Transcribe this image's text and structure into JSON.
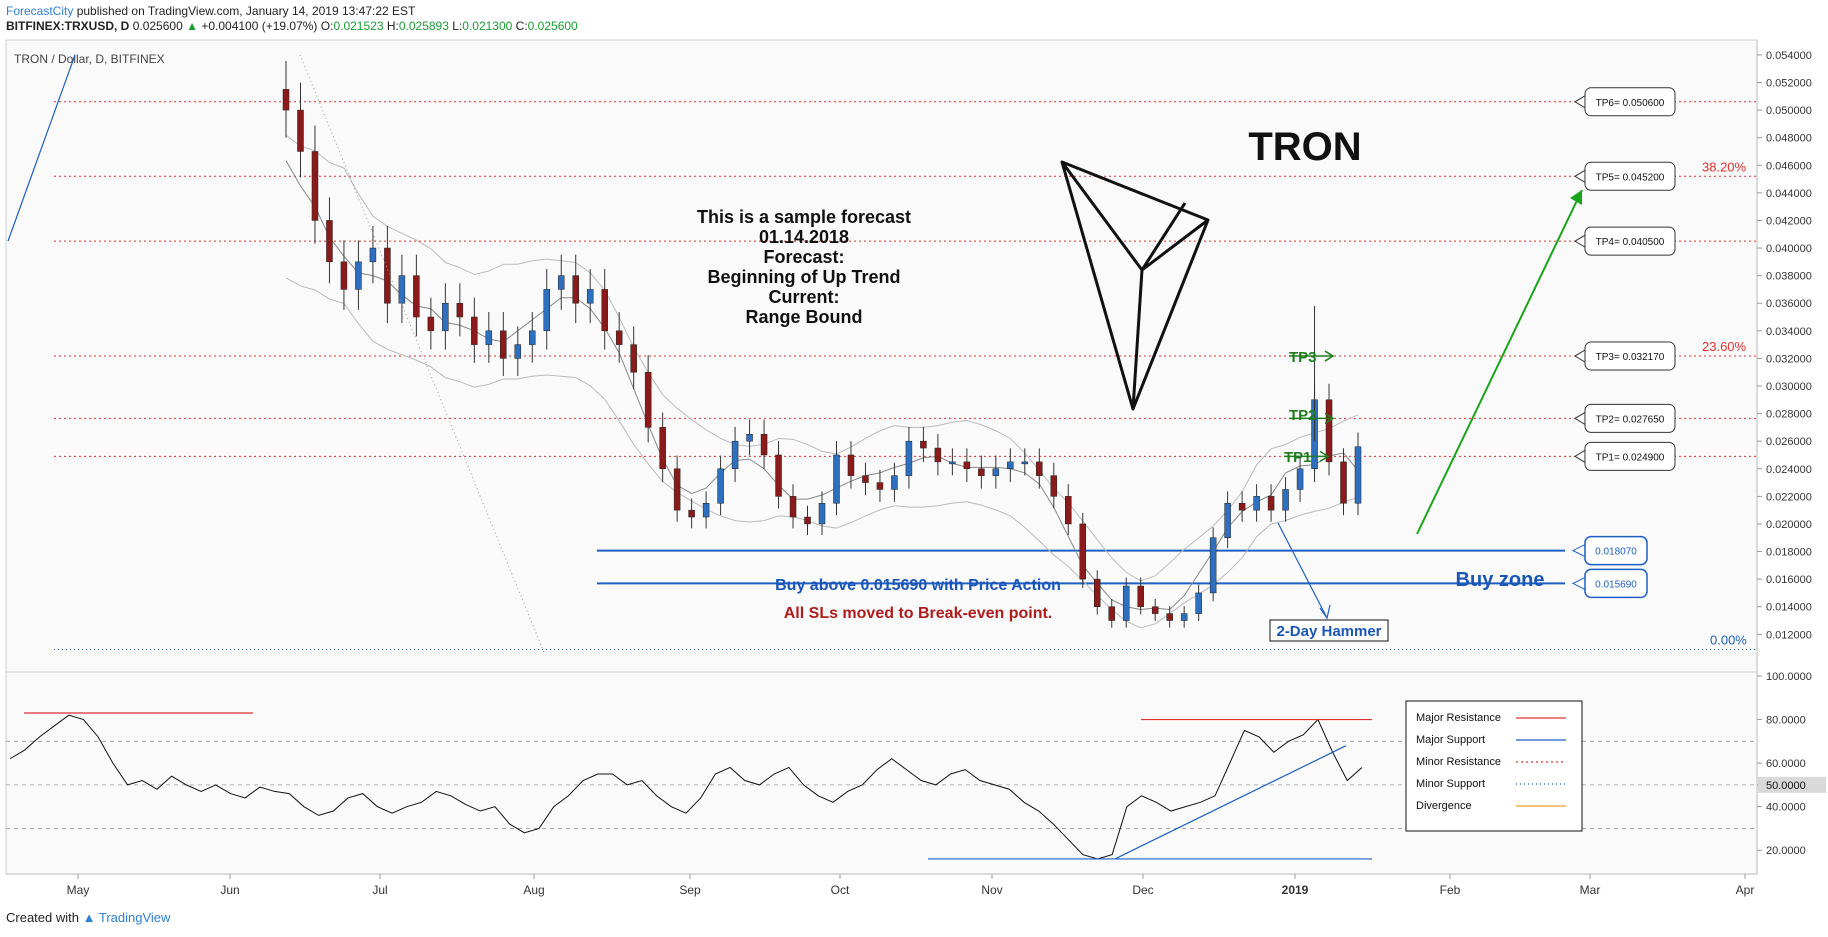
{
  "header": {
    "brand": "ForecastCity",
    "published": " published on TradingView.com, January 14, 2019 13:47:22 EST",
    "symbol": "BITFINEX:TRXUSD, D",
    "price": "0.025600",
    "change_arrow": "▲",
    "change": "+0.004100 (+19.07%)",
    "o_label": "O:",
    "o": "0.021523",
    "h_label": "H:",
    "h": "0.025893",
    "l_label": "L:",
    "l": "0.021300",
    "c_label": "C:",
    "c": "0.025600"
  },
  "footer": {
    "created_with": "Created with",
    "tradingview": "TradingView"
  },
  "colors": {
    "up_candle": "#2f6fbf",
    "down_candle": "#8b1a1a",
    "resistance": "#e03030",
    "support": "#1e5fc4",
    "buy_text": "#1a56b8",
    "sl_text": "#b01c1c",
    "tp_green": "#1f7d1f",
    "arrow_green": "#19a519"
  },
  "chart_data": [
    {
      "type": "line",
      "title": "TRON / Dollar, D, BITFINEX",
      "ylim": [
        0.0105,
        0.0545
      ],
      "x_ticks": [
        "May",
        "Jun",
        "Jul",
        "Aug",
        "Sep",
        "Oct",
        "Nov",
        "Dec",
        "2019",
        "Feb",
        "Mar",
        "Apr"
      ],
      "y_ticks": [
        "0.054000",
        "0.052000",
        "0.050000",
        "0.048000",
        "0.046000",
        "0.044000",
        "0.042000",
        "0.040000",
        "0.038000",
        "0.036000",
        "0.034000",
        "0.032000",
        "0.030000",
        "0.028000",
        "0.026000",
        "0.024000",
        "0.022000",
        "0.020000",
        "0.018000",
        "0.016000",
        "0.014000",
        "0.012000"
      ],
      "series": [
        {
          "values": [
            0.05,
            0.047,
            0.042,
            0.039,
            0.037,
            0.039,
            0.04,
            0.036,
            0.038,
            0.035,
            0.034,
            0.036,
            0.035,
            0.033,
            0.034,
            0.032,
            0.033,
            0.034,
            0.037,
            0.038,
            0.036,
            0.037,
            0.034,
            0.033,
            0.031,
            0.027,
            0.024,
            0.021,
            0.0205,
            0.0215,
            0.024,
            0.026,
            0.0265,
            0.025,
            0.022,
            0.0205,
            0.02,
            0.0215,
            0.025,
            0.0235,
            0.023,
            0.0225,
            0.0235,
            0.026,
            0.0255,
            0.0245,
            0.0245,
            0.024,
            0.0235,
            0.024,
            0.0245,
            0.0245,
            0.0235,
            0.022,
            0.02,
            0.016,
            0.014,
            0.013,
            0.0155,
            0.014,
            0.0135,
            0.013,
            0.0135,
            0.015,
            0.019,
            0.0215,
            0.021,
            0.022,
            0.021,
            0.0225,
            0.024,
            0.029,
            0.0245,
            0.0215,
            0.0256
          ]
        }
      ],
      "horizontal_levels": [
        {
          "name": "TP6",
          "label": "TP6= 0.050600",
          "value": 0.0506
        },
        {
          "name": "TP5",
          "label": "TP5= 0.045200",
          "value": 0.0452,
          "fib": "38.20%"
        },
        {
          "name": "TP4",
          "label": "TP4= 0.040500",
          "value": 0.0405
        },
        {
          "name": "TP3",
          "label": "TP3= 0.032170",
          "value": 0.03217,
          "fib": "23.60%"
        },
        {
          "name": "TP2",
          "label": "TP2= 0.027650",
          "value": 0.02765
        },
        {
          "name": "TP1",
          "label": "TP1= 0.024900",
          "value": 0.0249
        },
        {
          "name": "Buy upper",
          "label": "0.018070",
          "value": 0.01807
        },
        {
          "name": "Buy lower",
          "label": "0.015690",
          "value": 0.01569
        },
        {
          "name": "Fib base",
          "fib": "0.00%",
          "value": 0.0109
        }
      ]
    },
    {
      "type": "line",
      "ylim": [
        10,
        100
      ],
      "y_ticks": [
        "100.0000",
        "80.0000",
        "60.0000",
        "50.0000",
        "40.0000",
        "20.0000"
      ],
      "current_value_label": "50.0000",
      "series": [
        {
          "values": [
            62,
            66,
            72,
            77,
            82,
            80,
            72,
            60,
            50,
            52,
            48,
            54,
            50,
            47,
            50,
            46,
            44,
            49,
            47,
            46,
            40,
            36,
            38,
            44,
            46,
            40,
            37,
            40,
            42,
            47,
            45,
            41,
            38,
            40,
            32,
            28,
            30,
            40,
            45,
            52,
            55,
            55,
            50,
            52,
            45,
            40,
            37,
            44,
            55,
            58,
            52,
            50,
            55,
            58,
            50,
            45,
            42,
            47,
            50,
            57,
            62,
            57,
            52,
            50,
            55,
            57,
            52,
            50,
            48,
            42,
            38,
            32,
            25,
            18,
            16,
            18,
            40,
            45,
            42,
            38,
            40,
            42,
            45,
            60,
            75,
            72,
            65,
            70,
            73,
            80,
            65,
            52,
            58
          ]
        }
      ]
    }
  ],
  "annotations": {
    "tron_title": "TRON",
    "forecast_lines": [
      "This is a sample forecast",
      "01.14.2018",
      "Forecast:",
      "Beginning of Up Trend",
      "Current:",
      "Range Bound"
    ],
    "buy_above": "Buy above 0.015690 with Price Action",
    "sl_moved": "All SLs moved to Break-even point.",
    "buy_zone": "Buy zone",
    "hammer": "2-Day Hammer",
    "tp1": "TP1",
    "tp2": "TP2",
    "tp3": "TP3"
  },
  "legend": {
    "placement": "bottom-right",
    "items": [
      "Major Resistance",
      "Major Support",
      "Minor Resistance",
      "Minor Support",
      "Divergence"
    ]
  }
}
